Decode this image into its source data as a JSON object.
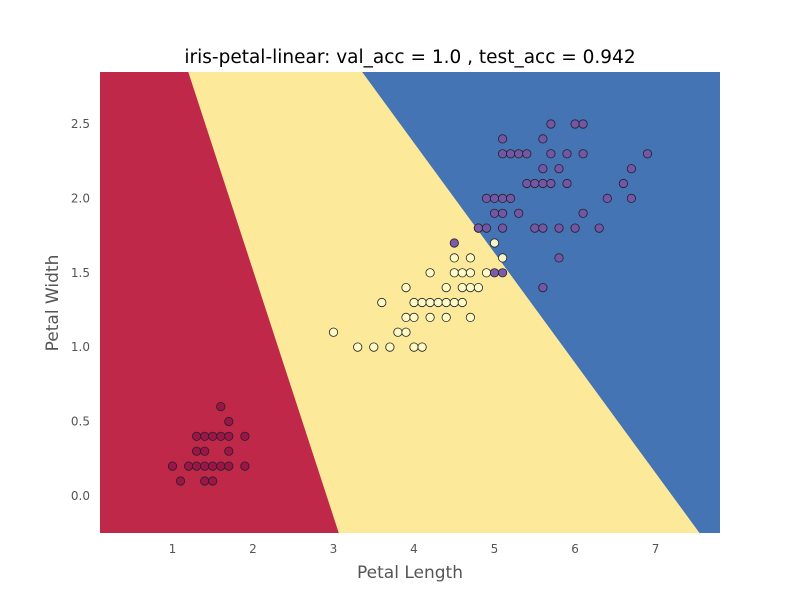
{
  "chart_data": {
    "type": "scatter",
    "title": "iris-petal-linear: val_acc = 1.0 , test_acc = 0.942",
    "xlabel": "Petal Length",
    "ylabel": "Petal Width",
    "xlim": [
      0.1,
      7.8
    ],
    "ylim": [
      -0.25,
      2.85
    ],
    "xticks": [
      1,
      2,
      3,
      4,
      5,
      6,
      7
    ],
    "yticks": [
      0.0,
      0.5,
      1.0,
      1.5,
      2.0,
      2.5
    ],
    "grid": false,
    "legend": "none",
    "decision_regions": [
      {
        "class": 0,
        "color": "#c0284a",
        "polygon": [
          [
            0.1,
            -0.25
          ],
          [
            0.1,
            2.85
          ],
          [
            1.2,
            2.85
          ],
          [
            3.07,
            -0.25
          ]
        ]
      },
      {
        "class": 1,
        "color": "#fde99a",
        "polygon": [
          [
            1.2,
            2.85
          ],
          [
            3.07,
            -0.25
          ],
          [
            7.55,
            -0.25
          ],
          [
            3.36,
            2.85
          ]
        ]
      },
      {
        "class": 2,
        "color": "#4474b4",
        "polygon": [
          [
            3.36,
            2.85
          ],
          [
            7.55,
            -0.25
          ],
          [
            7.8,
            -0.25
          ],
          [
            7.8,
            2.85
          ]
        ]
      }
    ],
    "series": [
      {
        "class": 0,
        "color": "#9b1448",
        "points": [
          [
            1.0,
            0.2
          ],
          [
            1.1,
            0.1
          ],
          [
            1.2,
            0.2
          ],
          [
            1.3,
            0.2
          ],
          [
            1.3,
            0.3
          ],
          [
            1.3,
            0.4
          ],
          [
            1.4,
            0.1
          ],
          [
            1.4,
            0.2
          ],
          [
            1.4,
            0.3
          ],
          [
            1.4,
            0.4
          ],
          [
            1.5,
            0.1
          ],
          [
            1.5,
            0.2
          ],
          [
            1.5,
            0.4
          ],
          [
            1.6,
            0.2
          ],
          [
            1.6,
            0.4
          ],
          [
            1.6,
            0.6
          ],
          [
            1.7,
            0.2
          ],
          [
            1.7,
            0.3
          ],
          [
            1.7,
            0.4
          ],
          [
            1.7,
            0.5
          ],
          [
            1.9,
            0.2
          ],
          [
            1.9,
            0.4
          ]
        ]
      },
      {
        "class": 1,
        "color": "#fdfbc8",
        "points": [
          [
            3.0,
            1.1
          ],
          [
            3.3,
            1.0
          ],
          [
            3.5,
            1.0
          ],
          [
            3.6,
            1.3
          ],
          [
            3.7,
            1.0
          ],
          [
            3.8,
            1.1
          ],
          [
            3.9,
            1.1
          ],
          [
            3.9,
            1.2
          ],
          [
            3.9,
            1.4
          ],
          [
            4.0,
            1.0
          ],
          [
            4.0,
            1.2
          ],
          [
            4.0,
            1.3
          ],
          [
            4.1,
            1.0
          ],
          [
            4.1,
            1.3
          ],
          [
            4.2,
            1.2
          ],
          [
            4.2,
            1.3
          ],
          [
            4.2,
            1.5
          ],
          [
            4.3,
            1.3
          ],
          [
            4.4,
            1.2
          ],
          [
            4.4,
            1.3
          ],
          [
            4.4,
            1.4
          ],
          [
            4.5,
            1.3
          ],
          [
            4.5,
            1.5
          ],
          [
            4.5,
            1.6
          ],
          [
            4.6,
            1.3
          ],
          [
            4.6,
            1.4
          ],
          [
            4.6,
            1.5
          ],
          [
            4.7,
            1.2
          ],
          [
            4.7,
            1.4
          ],
          [
            4.7,
            1.5
          ],
          [
            4.7,
            1.6
          ],
          [
            4.8,
            1.4
          ],
          [
            4.8,
            1.8
          ],
          [
            4.9,
            1.5
          ],
          [
            5.0,
            1.7
          ],
          [
            5.1,
            1.6
          ]
        ]
      },
      {
        "class": 2,
        "color": "#7654a8",
        "points": [
          [
            4.5,
            1.7
          ],
          [
            4.8,
            1.8
          ],
          [
            4.9,
            1.8
          ],
          [
            4.9,
            2.0
          ],
          [
            5.0,
            1.5
          ],
          [
            5.0,
            1.9
          ],
          [
            5.0,
            2.0
          ],
          [
            5.1,
            1.5
          ],
          [
            5.1,
            1.8
          ],
          [
            5.1,
            1.9
          ],
          [
            5.1,
            2.0
          ],
          [
            5.1,
            2.3
          ],
          [
            5.1,
            2.4
          ],
          [
            5.2,
            2.0
          ],
          [
            5.2,
            2.3
          ],
          [
            5.3,
            1.9
          ],
          [
            5.3,
            2.3
          ],
          [
            5.4,
            2.1
          ],
          [
            5.4,
            2.3
          ],
          [
            5.5,
            1.8
          ],
          [
            5.5,
            2.1
          ],
          [
            5.6,
            1.4
          ],
          [
            5.6,
            1.8
          ],
          [
            5.6,
            2.1
          ],
          [
            5.6,
            2.2
          ],
          [
            5.6,
            2.4
          ],
          [
            5.7,
            2.1
          ],
          [
            5.7,
            2.3
          ],
          [
            5.7,
            2.5
          ],
          [
            5.8,
            1.6
          ],
          [
            5.8,
            1.8
          ],
          [
            5.8,
            2.2
          ],
          [
            5.9,
            2.1
          ],
          [
            5.9,
            2.3
          ],
          [
            6.0,
            1.8
          ],
          [
            6.0,
            2.5
          ],
          [
            6.1,
            1.9
          ],
          [
            6.1,
            2.3
          ],
          [
            6.1,
            2.5
          ],
          [
            6.3,
            1.8
          ],
          [
            6.4,
            2.0
          ],
          [
            6.6,
            2.1
          ],
          [
            6.7,
            2.0
          ],
          [
            6.7,
            2.2
          ],
          [
            6.9,
            2.3
          ]
        ]
      }
    ]
  }
}
